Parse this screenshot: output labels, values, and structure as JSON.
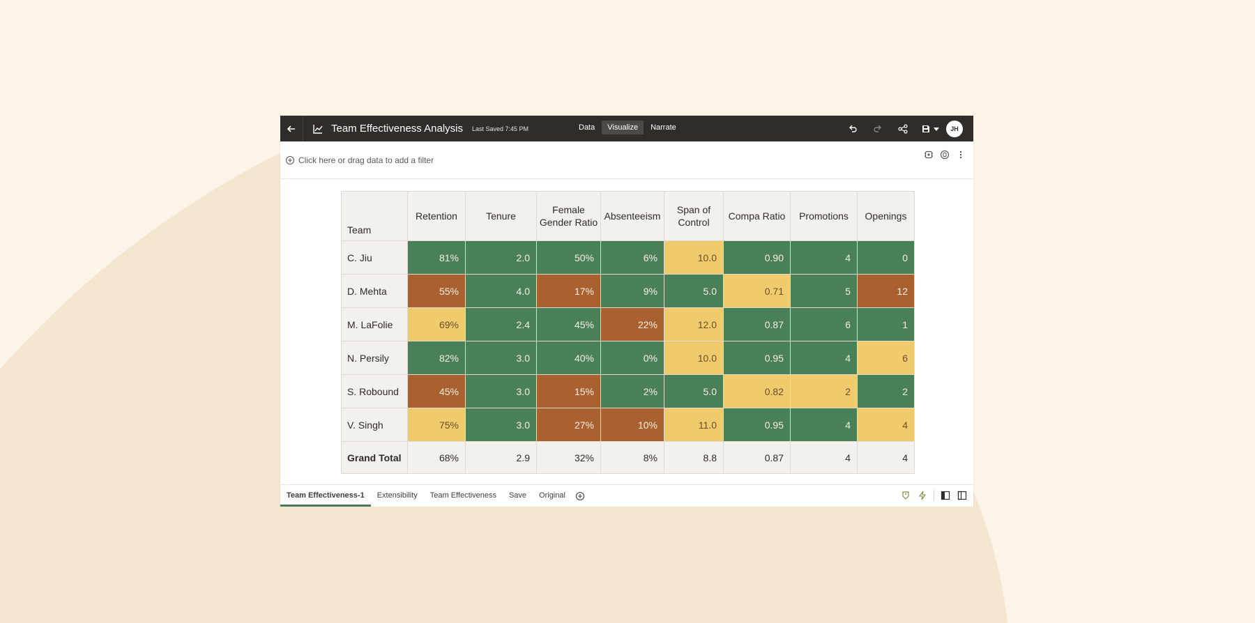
{
  "colors": {
    "background": "#fcf4e8",
    "shape": "#f5e6cf",
    "topbar": "#2f2c29",
    "good": "#4a8058",
    "warning": "#efcb6c",
    "bad": "#a9612f"
  },
  "header": {
    "title": "Team Effectiveness Analysis",
    "last_saved": "Last Saved 7:45 PM",
    "modes": [
      "Data",
      "Visualize",
      "Narrate"
    ],
    "active_mode": "Visualize",
    "avatar_initials": "JH",
    "icons": [
      "back-arrow-icon",
      "chart-icon",
      "undo-icon",
      "redo-icon",
      "share-icon",
      "save-icon",
      "chevron-down-icon"
    ]
  },
  "filter": {
    "placeholder": "Click here or drag data to add a filter",
    "icons": [
      "plus-circle-icon",
      "filter-settings-icon",
      "refresh-icon",
      "more-vertical-icon"
    ]
  },
  "table": {
    "columns": [
      "Team",
      "Retention",
      "Tenure",
      "Female Gender Ratio",
      "Absenteeism",
      "Span of Control",
      "Compa Ratio",
      "Promotions",
      "Openings"
    ],
    "rows": [
      {
        "name": "C. Jiu",
        "cells": [
          {
            "v": "81%",
            "c": "g"
          },
          {
            "v": "2.0",
            "c": "g"
          },
          {
            "v": "50%",
            "c": "g"
          },
          {
            "v": "6%",
            "c": "g"
          },
          {
            "v": "10.0",
            "c": "y"
          },
          {
            "v": "0.90",
            "c": "g"
          },
          {
            "v": "4",
            "c": "g"
          },
          {
            "v": "0",
            "c": "g"
          }
        ]
      },
      {
        "name": "D. Mehta",
        "cells": [
          {
            "v": "55%",
            "c": "r"
          },
          {
            "v": "4.0",
            "c": "g"
          },
          {
            "v": "17%",
            "c": "r"
          },
          {
            "v": "9%",
            "c": "g"
          },
          {
            "v": "5.0",
            "c": "g"
          },
          {
            "v": "0.71",
            "c": "y"
          },
          {
            "v": "5",
            "c": "g"
          },
          {
            "v": "12",
            "c": "r"
          }
        ]
      },
      {
        "name": "M. LaFolie",
        "cells": [
          {
            "v": "69%",
            "c": "y"
          },
          {
            "v": "2.4",
            "c": "g"
          },
          {
            "v": "45%",
            "c": "g"
          },
          {
            "v": "22%",
            "c": "r"
          },
          {
            "v": "12.0",
            "c": "y"
          },
          {
            "v": "0.87",
            "c": "g"
          },
          {
            "v": "6",
            "c": "g"
          },
          {
            "v": "1",
            "c": "g"
          }
        ]
      },
      {
        "name": "N. Persily",
        "cells": [
          {
            "v": "82%",
            "c": "g"
          },
          {
            "v": "3.0",
            "c": "g"
          },
          {
            "v": "40%",
            "c": "g"
          },
          {
            "v": "0%",
            "c": "g"
          },
          {
            "v": "10.0",
            "c": "y"
          },
          {
            "v": "0.95",
            "c": "g"
          },
          {
            "v": "4",
            "c": "g"
          },
          {
            "v": "6",
            "c": "y"
          }
        ]
      },
      {
        "name": "S. Robound",
        "cells": [
          {
            "v": "45%",
            "c": "r"
          },
          {
            "v": "3.0",
            "c": "g"
          },
          {
            "v": "15%",
            "c": "r"
          },
          {
            "v": "2%",
            "c": "g"
          },
          {
            "v": "5.0",
            "c": "g"
          },
          {
            "v": "0.82",
            "c": "y"
          },
          {
            "v": "2",
            "c": "y"
          },
          {
            "v": "2",
            "c": "g"
          }
        ]
      },
      {
        "name": "V. Singh",
        "cells": [
          {
            "v": "75%",
            "c": "y"
          },
          {
            "v": "3.0",
            "c": "g"
          },
          {
            "v": "27%",
            "c": "r"
          },
          {
            "v": "10%",
            "c": "r"
          },
          {
            "v": "11.0",
            "c": "y"
          },
          {
            "v": "0.95",
            "c": "g"
          },
          {
            "v": "4",
            "c": "g"
          },
          {
            "v": "4",
            "c": "y"
          }
        ]
      }
    ],
    "total": {
      "name": "Grand Total",
      "values": [
        "68%",
        "2.9",
        "32%",
        "8%",
        "8.8",
        "0.87",
        "4",
        "4"
      ]
    }
  },
  "tabs": {
    "items": [
      "Team Effectiveness-1",
      "Extensibility",
      "Team Effectiveness",
      "Save",
      "Original"
    ],
    "active": "Team Effectiveness-1",
    "icons": [
      "add-canvas-icon",
      "tag-icon",
      "lightning-icon",
      "left-panel-icon",
      "right-panel-icon"
    ]
  }
}
